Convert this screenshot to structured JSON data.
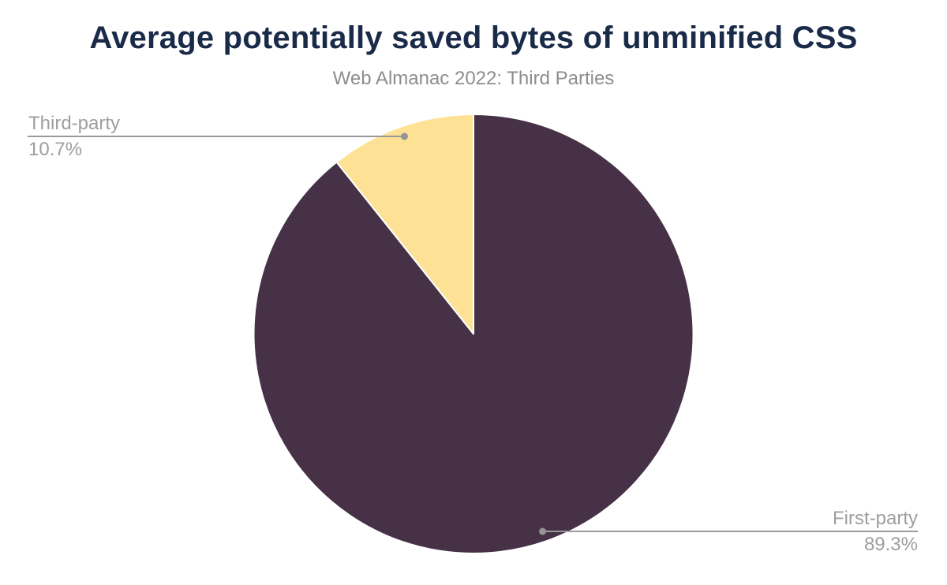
{
  "chart_data": {
    "type": "pie",
    "title": "Average potentially saved bytes of unminified CSS",
    "subtitle": "Web Almanac 2022: Third Parties",
    "unit": "%",
    "start_angle_deg": 0,
    "direction": "clockwise",
    "legend": "none",
    "label_style": "external callout with leader line and dot",
    "slices": [
      {
        "label": "First-party",
        "value": 89.3,
        "display": "89.3%",
        "color": "#463147",
        "callout": "right"
      },
      {
        "label": "Third-party",
        "value": 10.7,
        "display": "10.7%",
        "color": "#fde296",
        "callout": "left"
      }
    ]
  },
  "colors": {
    "background": "#ffffff",
    "title": "#1a2b49",
    "subtitle": "#8d8d8d",
    "label": "#9e9e9e",
    "leader": "#9a9a9a",
    "dot": "#949494",
    "slice_gap": "#ffffff"
  }
}
